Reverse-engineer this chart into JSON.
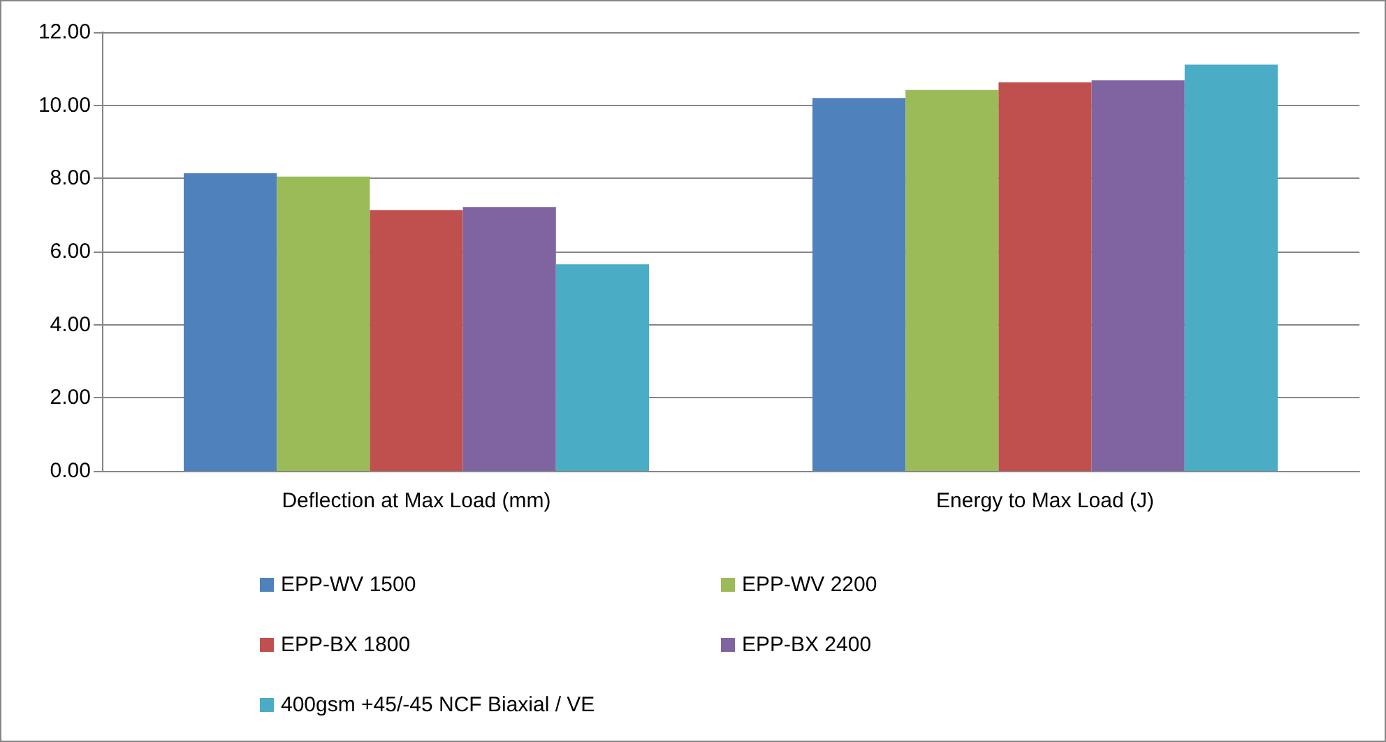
{
  "chart_data": {
    "type": "bar",
    "categories": [
      "Deflection at Max Load (mm)",
      "Energy to Max Load (J)"
    ],
    "series": [
      {
        "name": "EPP-WV 1500",
        "color": "#4f81bd",
        "values": [
          8.14,
          10.2
        ]
      },
      {
        "name": "EPP-WV 2200",
        "color": "#9bbb59",
        "values": [
          8.05,
          10.42
        ]
      },
      {
        "name": "EPP-BX 1800",
        "color": "#c0504d",
        "values": [
          7.13,
          10.63
        ]
      },
      {
        "name": "EPP-BX 2400",
        "color": "#8064a2",
        "values": [
          7.22,
          10.68
        ]
      },
      {
        "name": "400gsm +45/-45 NCF Biaxial / VE",
        "color": "#4bacc6",
        "values": [
          5.65,
          11.11
        ]
      }
    ],
    "ylim": [
      0,
      12
    ],
    "yticks": [
      {
        "value": 0,
        "label": "0.00"
      },
      {
        "value": 2,
        "label": "2.00"
      },
      {
        "value": 4,
        "label": "4.00"
      },
      {
        "value": 6,
        "label": "6.00"
      },
      {
        "value": 8,
        "label": "8.00"
      },
      {
        "value": 10,
        "label": "10.00"
      },
      {
        "value": 12,
        "label": "12.00"
      }
    ],
    "grid": "y",
    "legend": "bottom left"
  }
}
